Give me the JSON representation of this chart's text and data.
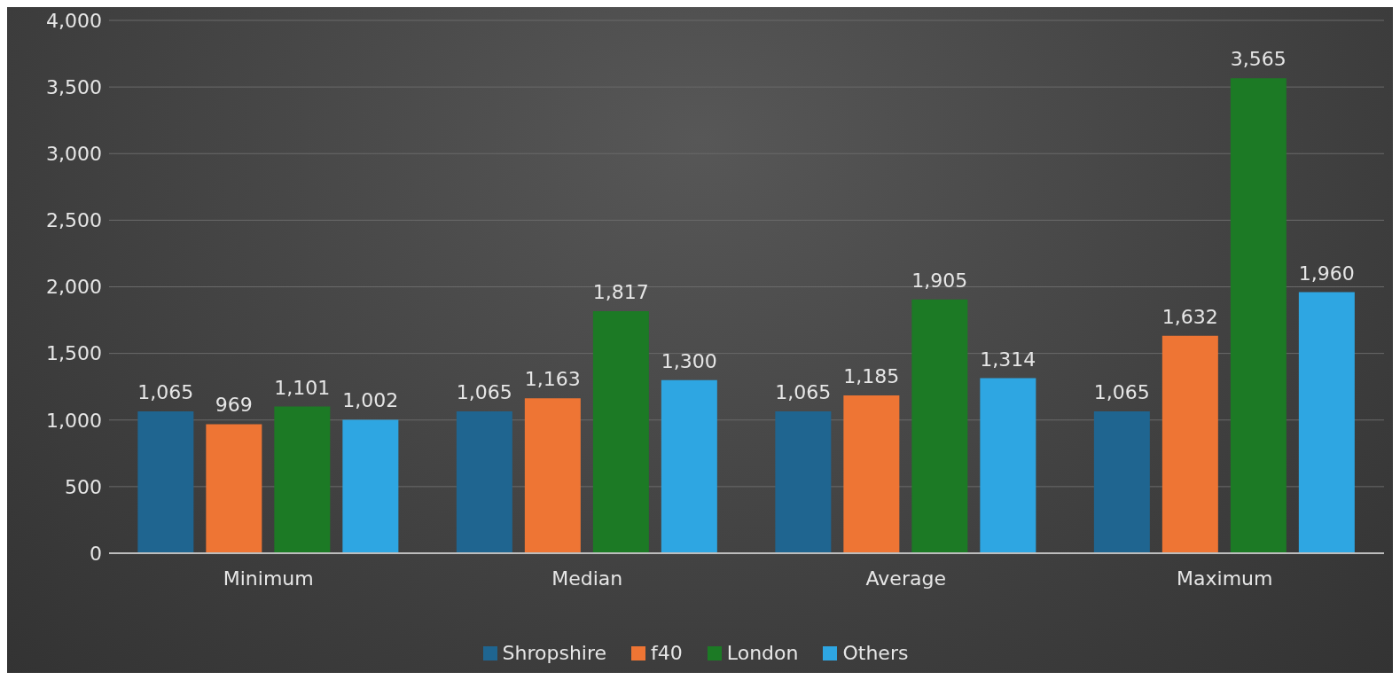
{
  "chart_data": {
    "type": "bar",
    "categories": [
      "Minimum",
      "Median",
      "Average",
      "Maximum"
    ],
    "series": [
      {
        "name": "Shropshire",
        "color": "#1f6590",
        "values": [
          1065,
          1065,
          1065,
          1065
        ],
        "value_labels": [
          "1,065",
          "1,065",
          "1,065",
          "1,065"
        ]
      },
      {
        "name": "f40",
        "color": "#ee7534",
        "values": [
          969,
          1163,
          1185,
          1632
        ],
        "value_labels": [
          "969",
          "1,163",
          "1,185",
          "1,632"
        ]
      },
      {
        "name": "London",
        "color": "#1c7a25",
        "values": [
          1101,
          1817,
          1905,
          3565
        ],
        "value_labels": [
          "1,101",
          "1,817",
          "1,905",
          "3,565"
        ]
      },
      {
        "name": "Others",
        "color": "#2ea6e2",
        "values": [
          1002,
          1300,
          1314,
          1960
        ],
        "value_labels": [
          "1,002",
          "1,300",
          "1,314",
          "1,960"
        ]
      }
    ],
    "ylim": [
      0,
      4000
    ],
    "yticks": [
      0,
      500,
      {
        "value": 1000,
        "label": "1,000"
      },
      {
        "value": 1500,
        "label": "1,500"
      },
      {
        "value": 2000,
        "label": "2,000"
      },
      {
        "value": 2500,
        "label": "2,500"
      },
      {
        "value": 3000,
        "label": "3,000"
      },
      {
        "value": 3500,
        "label": "3,500"
      },
      {
        "value": 4000,
        "label": "4,000"
      }
    ],
    "grid": "y",
    "legend": "bottom"
  }
}
